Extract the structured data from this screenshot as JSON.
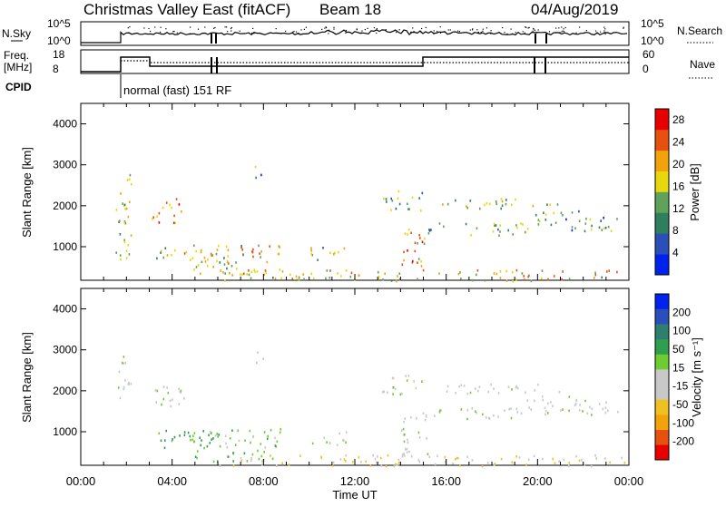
{
  "header": {
    "title": "Christmas Valley East (fitACF)",
    "beam": "Beam 18",
    "date": "04/Aug/2019"
  },
  "nsky_panel": {
    "left_label": "N.Sky",
    "left_ticks": [
      "10^5",
      "10^0"
    ],
    "right_label": "N.Search",
    "right_ticks": [
      "10^5",
      "10^0"
    ]
  },
  "freq_panel": {
    "left_label_line1": "Freq.",
    "left_label_line2": "[MHz]",
    "left_ticks": [
      "18",
      "8"
    ],
    "right_label": "Nave",
    "right_ticks": [
      "60",
      "0"
    ]
  },
  "cpid": {
    "label": "CPID",
    "program": "normal (fast) 151 RF"
  },
  "time_axis": {
    "label": "Time UT",
    "ticks": [
      "00:00",
      "04:00",
      "08:00",
      "12:00",
      "16:00",
      "20:00",
      "00:00"
    ]
  },
  "chart_data": [
    {
      "type": "heatmap",
      "title": "",
      "ylabel": "Slant Range [km]",
      "xlabel": "",
      "xlim": [
        0,
        24
      ],
      "ylim": [
        180,
        4500
      ],
      "yticks": [
        "1000",
        "2000",
        "3000",
        "4000"
      ],
      "colorbar": {
        "label": "Power [dB]",
        "ticks": [
          "4",
          "8",
          "12",
          "16",
          "20",
          "24",
          "28"
        ],
        "range": [
          0,
          30
        ],
        "colors": [
          "#0022ee",
          "#2b4fb8",
          "#2f7f5f",
          "#5fa35a",
          "#e6d80c",
          "#f2a20a",
          "#e85010",
          "#e80000"
        ]
      },
      "regions": [
        {
          "t": [
            1.5,
            2.2
          ],
          "r": [
            650,
            2900
          ],
          "v": 14
        },
        {
          "t": [
            3.0,
            4.4
          ],
          "r": [
            1600,
            2200
          ],
          "v": 22
        },
        {
          "t": [
            3.3,
            6.2
          ],
          "r": [
            700,
            1050
          ],
          "v": 16
        },
        {
          "t": [
            4.8,
            8.8
          ],
          "r": [
            350,
            1100
          ],
          "v": 18
        },
        {
          "t": [
            7.6,
            8.0
          ],
          "r": [
            2700,
            3100
          ],
          "v": 10
        },
        {
          "t": [
            10.0,
            11.7
          ],
          "r": [
            700,
            1050
          ],
          "v": 14
        },
        {
          "t": [
            13.1,
            15.0
          ],
          "r": [
            1900,
            2400
          ],
          "v": 12
        },
        {
          "t": [
            14.0,
            15.2
          ],
          "r": [
            450,
            1500
          ],
          "v": 20
        },
        {
          "t": [
            15.0,
            19.5
          ],
          "r": [
            1300,
            1600
          ],
          "v": 13
        },
        {
          "t": [
            15.8,
            21.0
          ],
          "r": [
            1950,
            2200
          ],
          "v": 14
        },
        {
          "t": [
            19.5,
            23.5
          ],
          "r": [
            1400,
            1900
          ],
          "v": 10
        },
        {
          "t": [
            6.0,
            23.8
          ],
          "r": [
            180,
            450
          ],
          "v": 18
        }
      ]
    },
    {
      "type": "heatmap",
      "title": "",
      "ylabel": "Slant Range [km]",
      "xlabel": "Time UT",
      "xlim": [
        0,
        24
      ],
      "ylim": [
        180,
        4500
      ],
      "yticks": [
        "1000",
        "2000",
        "3000",
        "4000"
      ],
      "colorbar": {
        "label": "Velocity [m s⁻¹]",
        "ticks": [
          "200",
          "100",
          "50",
          "15",
          "-15",
          "-50",
          "-100",
          "-200"
        ],
        "range": [
          -250,
          250
        ],
        "colors": [
          "#e80000",
          "#e85010",
          "#f2a20a",
          "#f0c020",
          "#c8c8c8",
          "#c8c8c8",
          "#6ccc30",
          "#2f9f4f",
          "#2f7f6f",
          "#2b4fb8",
          "#0022ee"
        ]
      },
      "regions": [
        {
          "t": [
            1.5,
            2.2
          ],
          "r": [
            1800,
            2900
          ],
          "v": 0
        },
        {
          "t": [
            3.0,
            4.6
          ],
          "r": [
            1600,
            2200
          ],
          "v": 0
        },
        {
          "t": [
            3.3,
            6.0
          ],
          "r": [
            600,
            1050
          ],
          "v": 70
        },
        {
          "t": [
            4.8,
            8.8
          ],
          "r": [
            300,
            1100
          ],
          "v": 40
        },
        {
          "t": [
            7.6,
            8.0
          ],
          "r": [
            2700,
            3100
          ],
          "v": -30
        },
        {
          "t": [
            10.0,
            11.7
          ],
          "r": [
            700,
            1050
          ],
          "v": 0
        },
        {
          "t": [
            13.1,
            15.0
          ],
          "r": [
            1900,
            2400
          ],
          "v": 0
        },
        {
          "t": [
            14.0,
            15.2
          ],
          "r": [
            450,
            1500
          ],
          "v": 0
        },
        {
          "t": [
            15.0,
            19.5
          ],
          "r": [
            1300,
            1600
          ],
          "v": 0
        },
        {
          "t": [
            15.8,
            21.0
          ],
          "r": [
            1950,
            2200
          ],
          "v": 0
        },
        {
          "t": [
            19.5,
            23.5
          ],
          "r": [
            1400,
            1900
          ],
          "v": 0
        },
        {
          "t": [
            6.0,
            23.8
          ],
          "r": [
            180,
            450
          ],
          "v": -60
        }
      ]
    }
  ]
}
